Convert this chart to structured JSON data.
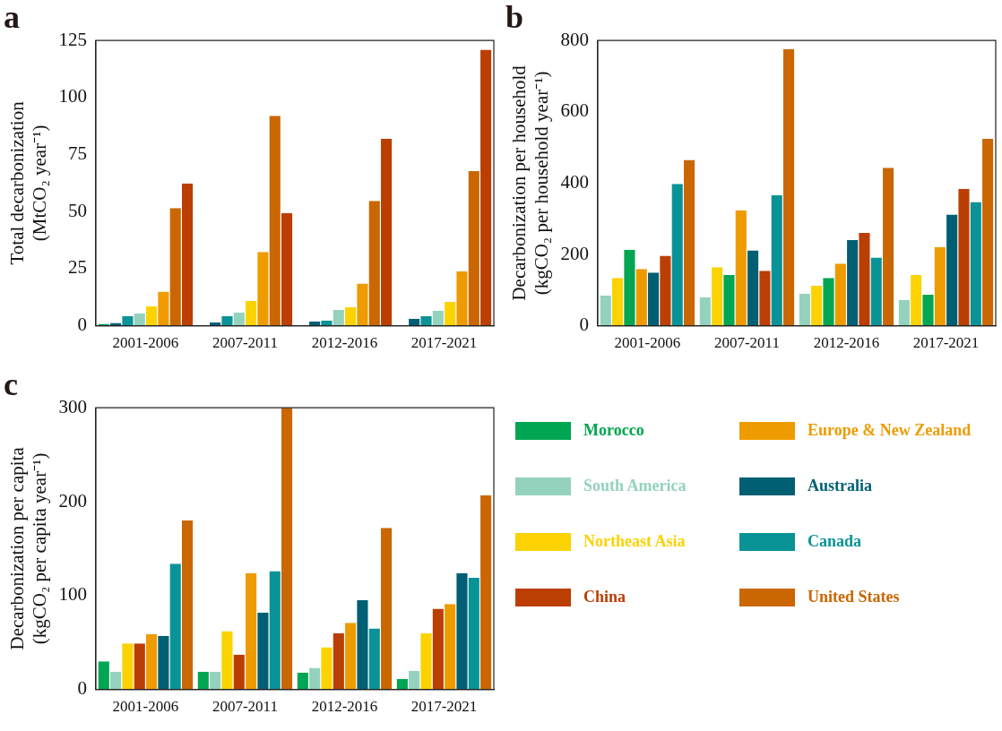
{
  "chart_data": [
    {
      "type": "bar",
      "title": "a",
      "ylabel": "Total decarbonization\n(MtCO₂ year⁻¹)",
      "categories": [
        "2001-2006",
        "2007-2011",
        "2012-2016",
        "2017-2021"
      ],
      "ylim": [
        0,
        125
      ],
      "yticks": [
        0,
        25,
        50,
        75,
        100,
        125
      ],
      "grid": false,
      "legend": false,
      "series": [
        {
          "color": "#00a651",
          "values": [
            0.8,
            null,
            null,
            null
          ]
        },
        {
          "color": "#005f73",
          "values": [
            1.2,
            1.5,
            1.9,
            3.1
          ]
        },
        {
          "color": "#0a9396",
          "values": [
            4.2,
            4.2,
            2.3,
            4.2
          ]
        },
        {
          "color": "#94d2bd",
          "values": [
            5.4,
            5.8,
            6.9,
            6.5
          ]
        },
        {
          "color": "#fcd200",
          "values": [
            8.5,
            10.8,
            8.1,
            10.4
          ]
        },
        {
          "color": "#ee9b00",
          "values": [
            15,
            32.3,
            18.5,
            23.9
          ]
        },
        {
          "color": "#ca6702",
          "values": [
            51.6,
            92,
            54.7,
            67.8
          ]
        },
        {
          "color": "#bb3e03",
          "values": [
            62.4,
            49.3,
            82,
            121
          ]
        }
      ]
    },
    {
      "type": "bar",
      "title": "b",
      "ylabel": "Decarbonization per household\n(kgCO₂ per household year⁻¹)",
      "categories": [
        "2001-2006",
        "2007-2011",
        "2012-2016",
        "2017-2021"
      ],
      "ylim": [
        0,
        800
      ],
      "yticks": [
        0,
        200,
        400,
        600,
        800
      ],
      "grid": false,
      "legend": false,
      "series": [
        {
          "color": "#94d2bd",
          "values": [
            85,
            80,
            90,
            72
          ]
        },
        {
          "color": "#fcd200",
          "values": [
            134,
            164,
            112,
            142
          ]
        },
        {
          "color": "#00a651",
          "values": [
            213,
            142,
            134,
            87
          ]
        },
        {
          "color": "#ee9b00",
          "values": [
            159,
            324,
            174,
            221
          ]
        },
        {
          "color": "#005f73",
          "values": [
            149,
            211,
            240,
            312
          ]
        },
        {
          "color": "#bb3e03",
          "values": [
            196,
            154,
            260,
            384
          ]
        },
        {
          "color": "#0a9396",
          "values": [
            398,
            366,
            191,
            347
          ]
        },
        {
          "color": "#ca6702",
          "values": [
            465,
            776,
            443,
            524
          ]
        }
      ]
    },
    {
      "type": "bar",
      "title": "c",
      "ylabel": "Decarbonization per capita\n(kgCO₂ per capita year⁻¹)",
      "categories": [
        "2001-2006",
        "2007-2011",
        "2012-2016",
        "2017-2021"
      ],
      "ylim": [
        0,
        300
      ],
      "yticks": [
        0,
        100,
        200,
        300
      ],
      "grid": false,
      "legend": "right",
      "series": [
        {
          "name": "Morocco",
          "color": "#00a651",
          "values": [
            30,
            19,
            18,
            11
          ]
        },
        {
          "name": "South America",
          "color": "#94d2bd",
          "values": [
            19,
            19,
            23,
            20
          ]
        },
        {
          "name": "Northeast Asia",
          "color": "#fcd200",
          "values": [
            49,
            62,
            45,
            60
          ]
        },
        {
          "name": "China",
          "color": "#bb3e03",
          "values": [
            49,
            37,
            60,
            86
          ]
        },
        {
          "name": "Europe & New Zealand",
          "color": "#ee9b00",
          "values": [
            59,
            124,
            71,
            91
          ]
        },
        {
          "name": "Australia",
          "color": "#005f73",
          "values": [
            57,
            82,
            95,
            124
          ]
        },
        {
          "name": "Canada",
          "color": "#0a9396",
          "values": [
            134,
            126,
            65,
            119
          ]
        },
        {
          "name": "United States",
          "color": "#ca6702",
          "values": [
            180,
            300,
            172,
            207
          ]
        }
      ]
    }
  ]
}
